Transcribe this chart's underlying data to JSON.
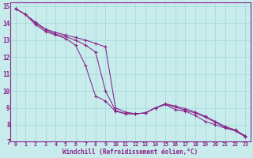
{
  "xlabel": "Windchill (Refroidissement éolien,°C)",
  "bg_color": "#c8ecec",
  "grid_color": "#aadddd",
  "line_color": "#882288",
  "spine_color": "#882288",
  "xlim": [
    -0.5,
    23.5
  ],
  "ylim": [
    7,
    15.2
  ],
  "yticks": [
    7,
    8,
    9,
    10,
    11,
    12,
    13,
    14,
    15
  ],
  "xticks": [
    0,
    1,
    2,
    3,
    4,
    5,
    6,
    7,
    8,
    9,
    10,
    11,
    12,
    13,
    14,
    15,
    16,
    17,
    18,
    19,
    20,
    21,
    22,
    23
  ],
  "line1_x": [
    0,
    1,
    2,
    3,
    4,
    5,
    6,
    7,
    8,
    9,
    10,
    11,
    12,
    13,
    14,
    15,
    16,
    17,
    18,
    19,
    20,
    21,
    22,
    23
  ],
  "line1_y": [
    14.85,
    14.5,
    13.9,
    13.5,
    13.3,
    13.1,
    12.7,
    11.5,
    9.7,
    9.4,
    8.8,
    8.65,
    8.65,
    8.7,
    9.0,
    9.2,
    8.9,
    8.8,
    8.55,
    8.2,
    8.0,
    7.8,
    7.65,
    7.3
  ],
  "line2_x": [
    0,
    1,
    2,
    3,
    4,
    5,
    6,
    7,
    8,
    9,
    10,
    11,
    12,
    13,
    14,
    15,
    16,
    17,
    18,
    19,
    20,
    21,
    22,
    23
  ],
  "line2_y": [
    14.85,
    14.5,
    14.0,
    13.6,
    13.35,
    13.2,
    13.0,
    12.7,
    12.3,
    10.0,
    8.85,
    8.65,
    8.65,
    8.7,
    9.0,
    9.2,
    9.05,
    8.85,
    8.7,
    8.45,
    8.15,
    7.85,
    7.65,
    7.3
  ],
  "line3_x": [
    0,
    1,
    2,
    3,
    4,
    5,
    6,
    7,
    8,
    9,
    10,
    11,
    12,
    13,
    14,
    15,
    16,
    17,
    18,
    19,
    20,
    21,
    22,
    23
  ],
  "line3_y": [
    14.85,
    14.5,
    14.05,
    13.65,
    13.45,
    13.3,
    13.15,
    13.0,
    12.8,
    12.6,
    9.0,
    8.75,
    8.65,
    8.7,
    9.0,
    9.25,
    9.1,
    8.95,
    8.75,
    8.5,
    8.2,
    7.9,
    7.7,
    7.35
  ]
}
